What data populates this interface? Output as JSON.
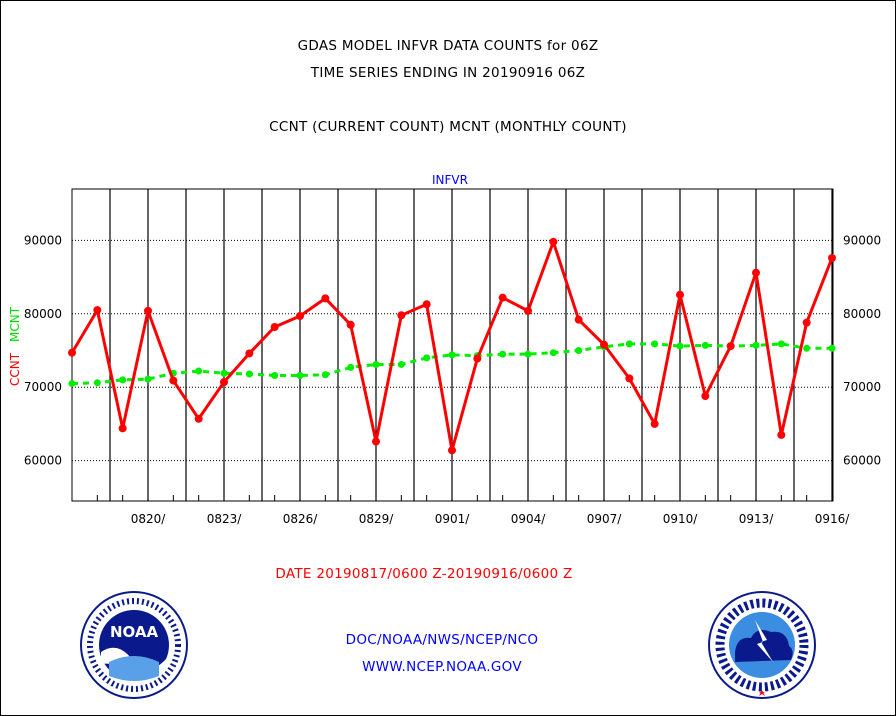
{
  "titles": {
    "line1": "GDAS MODEL INFVR DATA COUNTS for 06Z",
    "line2": "TIME SERIES ENDING IN 20190916 06Z",
    "line3": "CCNT (CURRENT COUNT) MCNT (MONTHLY COUNT)"
  },
  "footer": {
    "date_range": "DATE 20190817/0600 Z-20190916/0600 Z",
    "org": "DOC/NOAA/NWS/NCEP/NCO",
    "url": "WWW.NCEP.NOAA.GOV"
  },
  "logos": {
    "left": {
      "icon": "noaa-logo-icon",
      "text": "NOAA"
    },
    "right": {
      "icon": "nws-logo-icon"
    }
  },
  "colors": {
    "ccnt": "#ff0000",
    "mcnt": "#00ee00",
    "plot_label": "#0000ff"
  },
  "chart_data": {
    "type": "line",
    "title": "INFVR",
    "ylabel_left": "CCNT",
    "ylabel_right": "MCNT",
    "ylim": [
      54500,
      97000
    ],
    "yticks": [
      60000,
      70000,
      80000,
      90000
    ],
    "ytick_labels": [
      "60000",
      "70000",
      "80000",
      "90000"
    ],
    "xticks": [
      "0820/",
      "0823/",
      "0826/",
      "0829/",
      "0901/",
      "0904/",
      "0907/",
      "0910/",
      "0913/",
      "0916/"
    ],
    "grid": true,
    "x": [
      "0817",
      "0818",
      "0819",
      "0820",
      "0821",
      "0822",
      "0823",
      "0824",
      "0825",
      "0826",
      "0827",
      "0828",
      "0829",
      "0830",
      "0831",
      "0901",
      "0902",
      "0903",
      "0904",
      "0905",
      "0906",
      "0907",
      "0908",
      "0909",
      "0910",
      "0911",
      "0912",
      "0913",
      "0914",
      "0915",
      "0916"
    ],
    "series": [
      {
        "name": "CCNT",
        "color": "#ff0000",
        "values": [
          74700,
          80500,
          64400,
          80400,
          70900,
          65700,
          70700,
          74600,
          78200,
          79700,
          82100,
          78500,
          62600,
          79800,
          81300,
          61400,
          73900,
          82200,
          80400,
          89800,
          79200,
          75800,
          71200,
          65000,
          82600,
          68800,
          75600,
          85600,
          63500,
          78800,
          87600
        ]
      },
      {
        "name": "MCNT",
        "color": "#00ee00",
        "values": [
          70500,
          70600,
          71000,
          71100,
          71900,
          72200,
          71900,
          71800,
          71600,
          71600,
          71700,
          72700,
          73100,
          73100,
          74000,
          74400,
          74300,
          74500,
          74500,
          74700,
          75000,
          75500,
          75900,
          75900,
          75600,
          75700,
          75600,
          75700,
          75900,
          75300,
          75300
        ]
      }
    ]
  }
}
